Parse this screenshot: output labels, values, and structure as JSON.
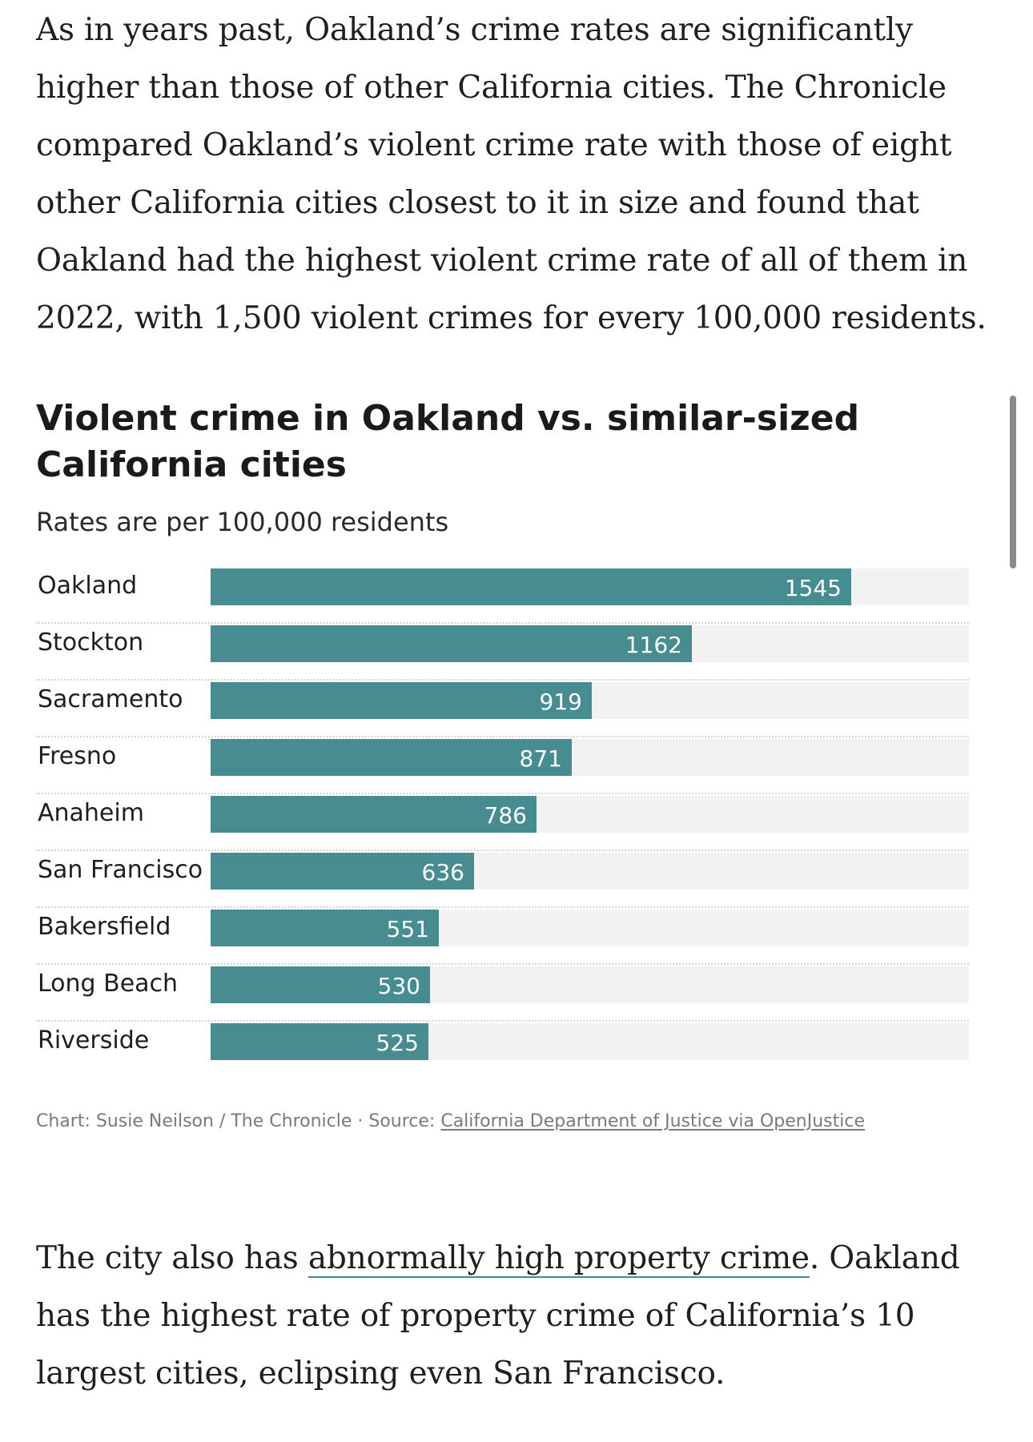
{
  "article": {
    "paragraph_1": "As in years past, Oakland’s crime rates are significantly higher than those of other California cities. The Chronicle compared Oakland’s violent crime rate with those of eight other California cities closest to it in size and found that Oakland had the highest violent crime rate of all of them in 2022, with 1,500 violent crimes for every 100,000 residents.",
    "paragraph_2_before_link": "The city also has ",
    "paragraph_2_link": "abnormally high property crime",
    "paragraph_2_after_link": ". Oakland has the highest rate of property crime of California’s 10 largest cities, eclipsing even San Francisco."
  },
  "credit": {
    "prefix": "Chart: Susie Neilson / The Chronicle · Source: ",
    "source_link": "California Department of Justice via OpenJustice"
  },
  "colors": {
    "bar": "#468c91",
    "track": "#f2f2f2",
    "link_underline": "#3a8f91"
  },
  "chart_data": {
    "type": "bar",
    "orientation": "horizontal",
    "title": "Violent crime in Oakland vs. similar-sized California cities",
    "subtitle": "Rates are per 100,000 residents",
    "xlim": [
      0,
      1830
    ],
    "grid": false,
    "categories": [
      "Oakland",
      "Stockton",
      "Sacramento",
      "Fresno",
      "Anaheim",
      "San Francisco",
      "Bakersfield",
      "Long Beach",
      "Riverside"
    ],
    "values": [
      1545,
      1162,
      919,
      871,
      786,
      636,
      551,
      530,
      525
    ],
    "data_labels": [
      "1545",
      "1162",
      "919",
      "871",
      "786",
      "636",
      "551",
      "530",
      "525"
    ]
  }
}
